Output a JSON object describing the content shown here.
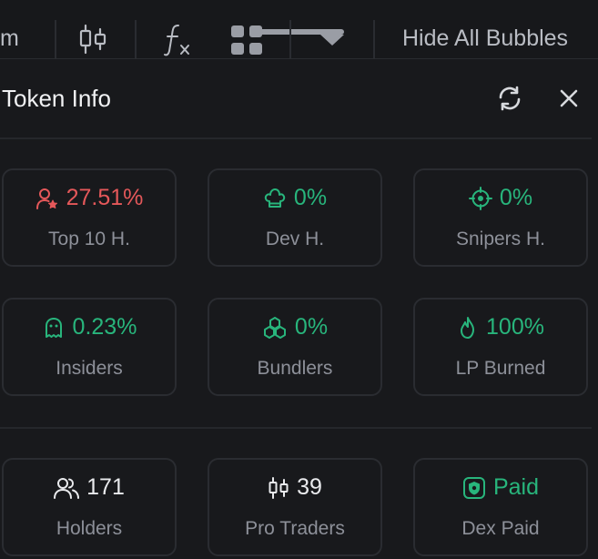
{
  "toolbar": {
    "partial_text": "m",
    "hide_bubbles_label": "Hide All Bubbles"
  },
  "panel": {
    "title": "Token Info"
  },
  "stats": [
    {
      "value": "27.51%",
      "label": "Top 10 H.",
      "icon": "user-star-icon",
      "color": "#e5585a"
    },
    {
      "value": "0%",
      "label": "Dev H.",
      "icon": "chef-hat-icon",
      "color": "#28b57c"
    },
    {
      "value": "0%",
      "label": "Snipers H.",
      "icon": "crosshair-icon",
      "color": "#28b57c"
    },
    {
      "value": "0.23%",
      "label": "Insiders",
      "icon": "ghost-icon",
      "color": "#28b57c"
    },
    {
      "value": "0%",
      "label": "Bundlers",
      "icon": "boxes-icon",
      "color": "#28b57c"
    },
    {
      "value": "100%",
      "label": "LP Burned",
      "icon": "flame-icon",
      "color": "#28b57c"
    },
    {
      "value": "171",
      "label": "Holders",
      "icon": "users-icon",
      "color": "#e9eaed"
    },
    {
      "value": "39",
      "label": "Pro Traders",
      "icon": "candlestick-icon",
      "color": "#e9eaed"
    },
    {
      "value": "Paid",
      "label": "Dex Paid",
      "icon": "shield-badge-icon",
      "color": "#28b57c"
    }
  ]
}
